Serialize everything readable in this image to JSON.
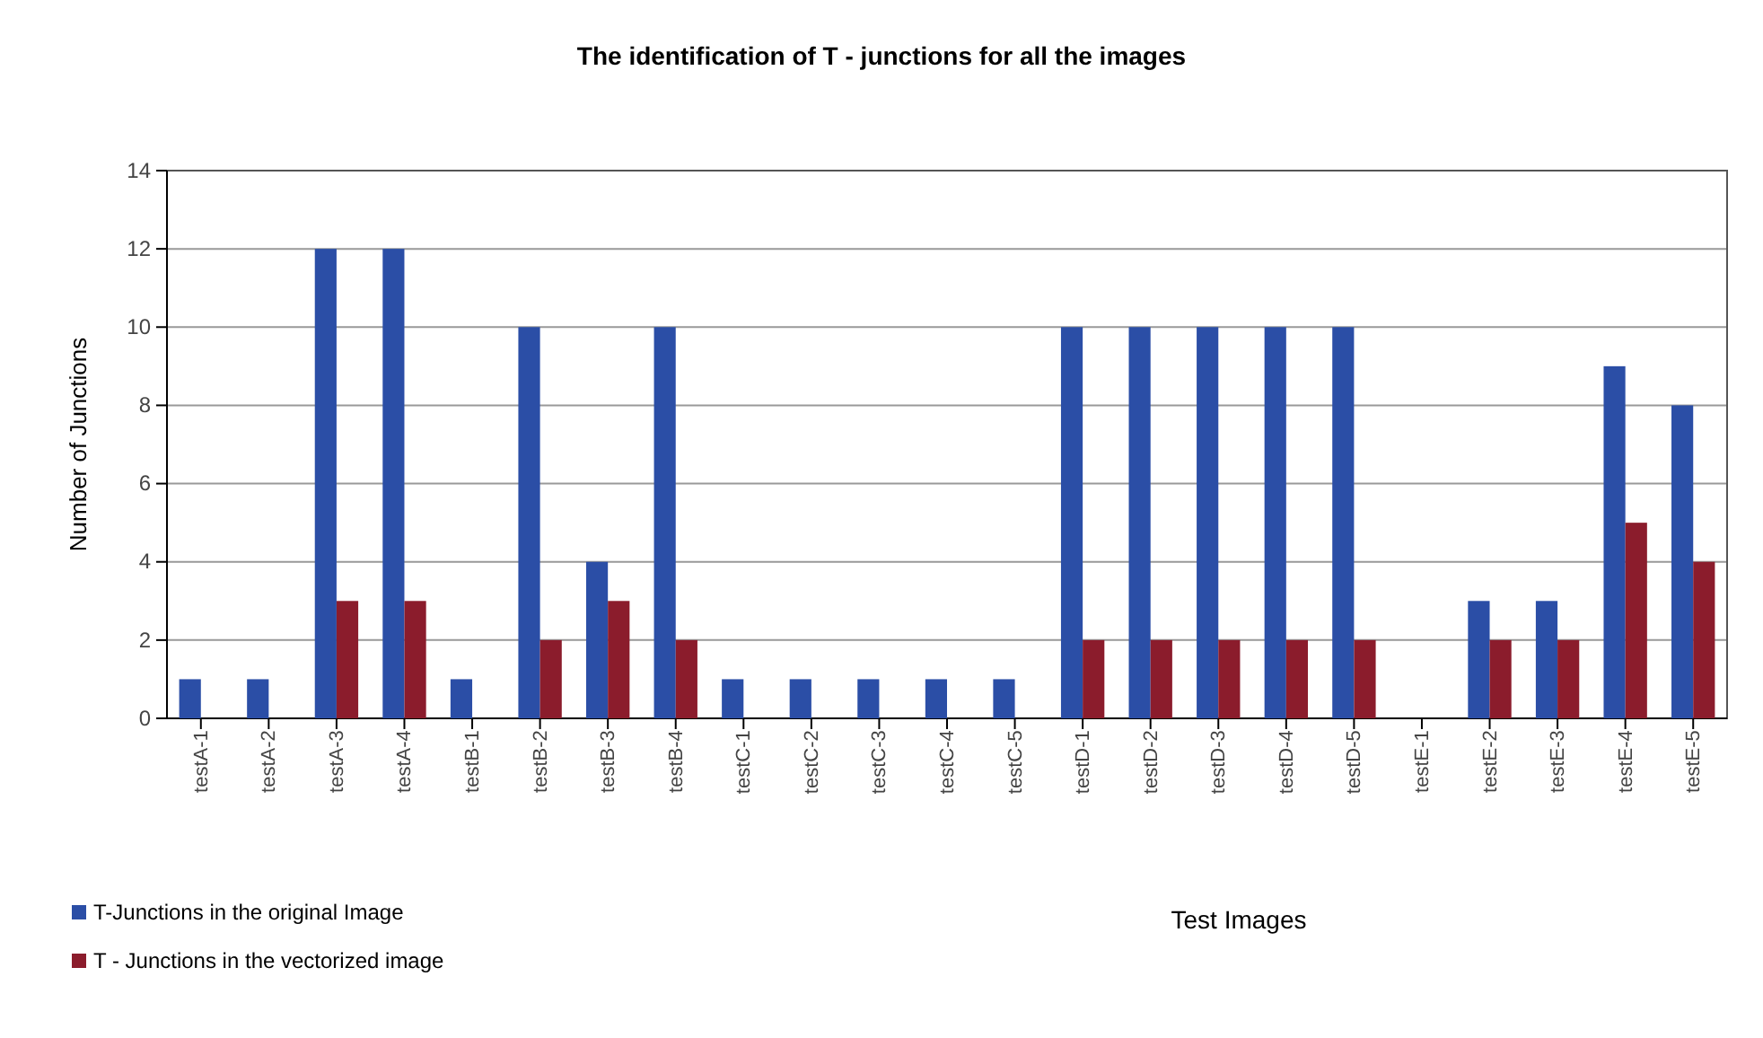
{
  "chart_data": {
    "type": "bar",
    "title": "The identification of T - junctions for all the images",
    "xlabel": "Test Images",
    "ylabel": "Number of Junctions",
    "categories": [
      "testA-1",
      "testA-2",
      "testA-3",
      "testA-4",
      "testB-1",
      "testB-2",
      "testB-3",
      "testB-4",
      "testC-1",
      "testC-2",
      "testC-3",
      "testC-4",
      "testC-5",
      "testD-1",
      "testD-2",
      "testD-3",
      "testD-4",
      "testD-5",
      "testE-1",
      "testE-2",
      "testE-3",
      "testE-4",
      "testE-5"
    ],
    "series": [
      {
        "name": "T-Junctions in the original Image",
        "color": "#2b4ea6",
        "values": [
          1,
          1,
          12,
          12,
          1,
          10,
          4,
          10,
          1,
          1,
          1,
          1,
          1,
          10,
          10,
          10,
          10,
          10,
          0,
          3,
          3,
          9,
          8
        ]
      },
      {
        "name": "T - Junctions in the vectorized image",
        "color": "#8b1c2c",
        "values": [
          0,
          0,
          3,
          3,
          0,
          2,
          3,
          2,
          0,
          0,
          0,
          0,
          0,
          2,
          2,
          2,
          2,
          2,
          0,
          2,
          2,
          5,
          4
        ]
      }
    ],
    "ylim": [
      0,
      14
    ],
    "yticks": [
      0,
      2,
      4,
      6,
      8,
      10,
      12,
      14
    ],
    "grid": "y",
    "legend": "bottom left"
  }
}
